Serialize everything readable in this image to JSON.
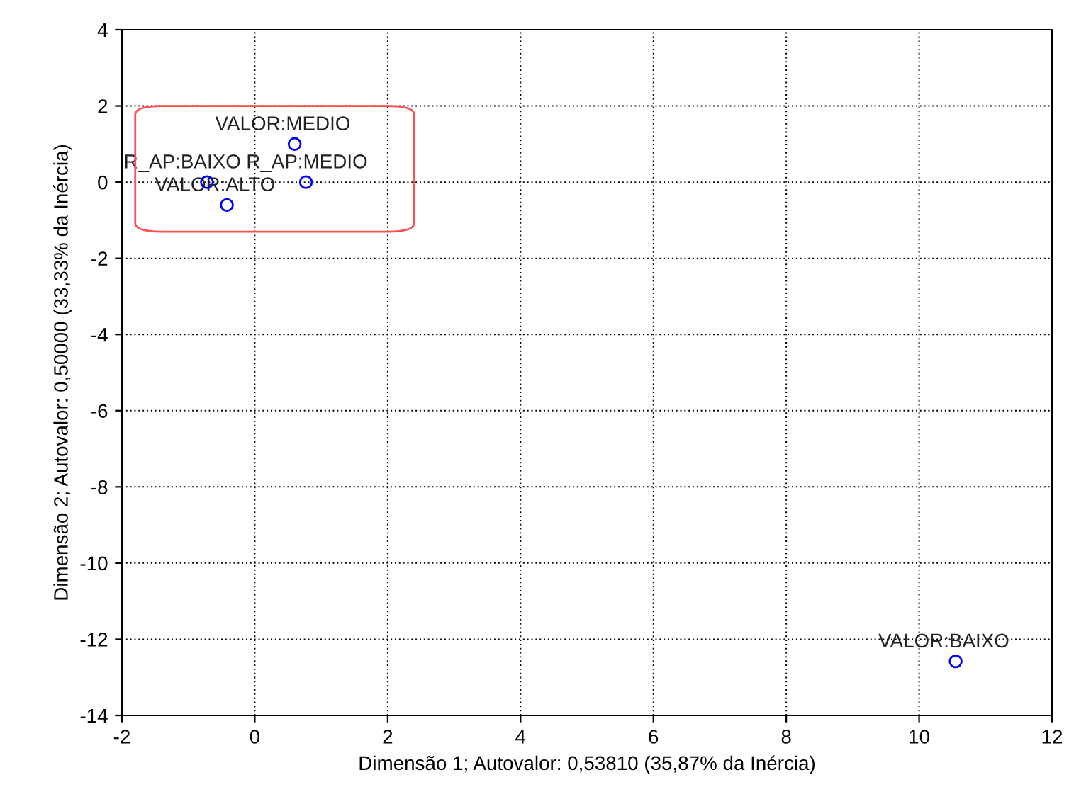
{
  "chart_data": {
    "type": "scatter",
    "xlabel": "Dimensão 1; Autovalor: 0,53810 (35,87% da Inércia)",
    "ylabel": "Dimensão 2; Autovalor: 0,50000 (33,33% da Inércia)",
    "x": [
      0.6,
      0.77,
      -0.72,
      -0.42,
      10.55
    ],
    "series": [
      {
        "color": "#0000ff",
        "values": [
          1.0,
          0.0,
          0.0,
          -0.6,
          -12.58
        ]
      }
    ],
    "annotations": [
      {
        "text": "VALOR:MEDIO",
        "x": 0.6,
        "y": 1.0
      },
      {
        "text": "R_AP:MEDIO",
        "x": 0.77,
        "y": 0.0
      },
      {
        "text": "R_AP:BAIXO",
        "x": -0.72,
        "y": 0.0
      },
      {
        "text": "VALOR:ALTO",
        "x": -0.42,
        "y": -0.6
      },
      {
        "text": "VALOR:BAIXO",
        "x": 10.55,
        "y": -12.58
      }
    ],
    "xlim": [
      -2,
      12
    ],
    "xticks": [
      -2,
      0,
      2,
      4,
      6,
      8,
      10,
      12
    ],
    "ylim": [
      -14,
      4
    ],
    "yticks": [
      -14,
      -12,
      -10,
      -8,
      -6,
      -4,
      -2,
      0,
      2,
      4
    ],
    "grid": true,
    "marker": "circle"
  }
}
